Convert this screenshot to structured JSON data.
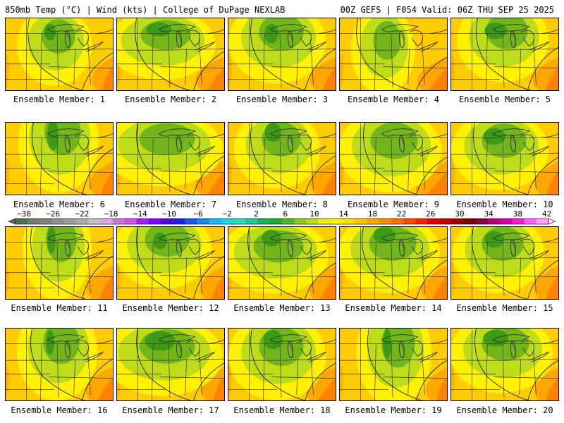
{
  "header": {
    "left": "850mb Temp (°C) | Wind (kts) | College of DuPage NEXLAB",
    "right": "00Z GEFS | F054 Valid: 06Z THU SEP 25 2025"
  },
  "members": [
    {
      "label": "Ensemble Member: 1"
    },
    {
      "label": "Ensemble Member: 2"
    },
    {
      "label": "Ensemble Member: 3"
    },
    {
      "label": "Ensemble Member: 4"
    },
    {
      "label": "Ensemble Member: 5"
    },
    {
      "label": "Ensemble Member: 6"
    },
    {
      "label": "Ensemble Member: 7"
    },
    {
      "label": "Ensemble Member: 8"
    },
    {
      "label": "Ensemble Member: 9"
    },
    {
      "label": "Ensemble Member: 10"
    },
    {
      "label": "Ensemble Member: 11"
    },
    {
      "label": "Ensemble Member: 12"
    },
    {
      "label": "Ensemble Member: 13"
    },
    {
      "label": "Ensemble Member: 14"
    },
    {
      "label": "Ensemble Member: 15"
    },
    {
      "label": "Ensemble Member: 16"
    },
    {
      "label": "Ensemble Member: 17"
    },
    {
      "label": "Ensemble Member: 18"
    },
    {
      "label": "Ensemble Member: 19"
    },
    {
      "label": "Ensemble Member: 20"
    }
  ],
  "colorbar": {
    "tick_labels": [
      "−30",
      "−26",
      "−22",
      "−18",
      "−14",
      "−10",
      "−6",
      "−2",
      "2",
      "6",
      "10",
      "14",
      "18",
      "22",
      "26",
      "30",
      "34",
      "38",
      "42"
    ],
    "colors": [
      "#4f6f52",
      "#6c7f6c",
      "#808080",
      "#8f8f8f",
      "#9e9e9e",
      "#acacac",
      "#c3c3c3",
      "#d9a6e6",
      "#c77ad8",
      "#d24fe0",
      "#a020f0",
      "#7f00ff",
      "#4b0dd6",
      "#2020e0",
      "#1f56e6",
      "#1c8ae8",
      "#18b8ee",
      "#1fd6e0",
      "#22e0b4",
      "#20c890",
      "#1fb05c",
      "#24a838",
      "#4fb82a",
      "#86c81e",
      "#b8dc1a",
      "#e8f010",
      "#fff200",
      "#ffe000",
      "#ffc400",
      "#ffa800",
      "#ff8c00",
      "#ff6e00",
      "#ff4a00",
      "#ff2200",
      "#e60000",
      "#c40000",
      "#a00000",
      "#7a0000",
      "#8a0040",
      "#b0007a",
      "#d600a8",
      "#f020d0",
      "#ff60ff",
      "#ffa0ff"
    ]
  },
  "palette": {
    "dark_green": "#3c9a14",
    "green": "#72b61c",
    "yellow_green": "#bedc18",
    "yellow": "#fff100",
    "gold": "#ffcc00",
    "orange": "#ff9f00",
    "dark_orange": "#ff7c00"
  }
}
